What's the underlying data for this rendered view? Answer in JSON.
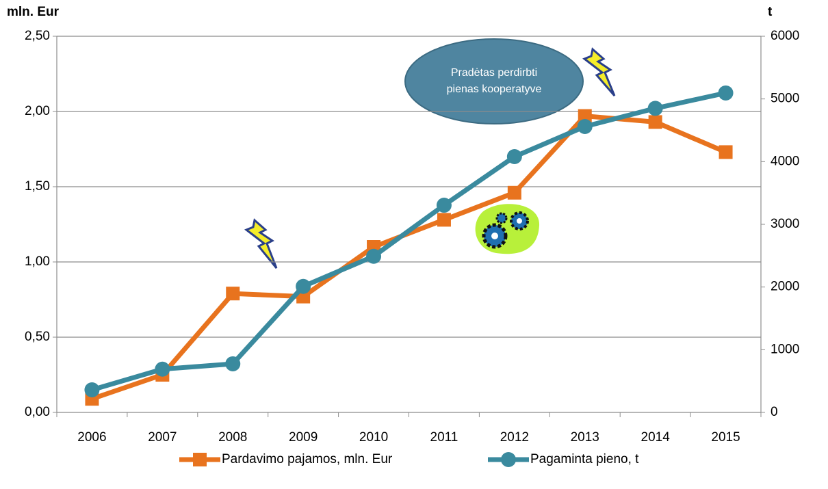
{
  "chart_data": {
    "type": "line",
    "y_label": "mln. Eur",
    "y2_label": "t",
    "categories": [
      "2006",
      "2007",
      "2008",
      "2009",
      "2010",
      "2011",
      "2012",
      "2013",
      "2014",
      "2015"
    ],
    "series": [
      {
        "name": "Pardavimo pajamos, mln. Eur",
        "color": "#e8731e",
        "marker": "square",
        "values": [
          0.09,
          0.25,
          0.79,
          0.77,
          1.1,
          1.28,
          1.46,
          1.97,
          1.93,
          1.73
        ]
      },
      {
        "name": "Pagaminta pieno, t",
        "color": "#3a8a9e",
        "marker": "circle",
        "axis": "y2",
        "values": [
          360,
          690,
          775,
          2010,
          2490,
          3305,
          4080,
          4560,
          4850,
          5095
        ]
      }
    ],
    "ylim": [
      0,
      2.5
    ],
    "yticks": [
      {
        "value": 0,
        "label": "0,00"
      },
      {
        "value": 0.5,
        "label": "0,50"
      },
      {
        "value": 1,
        "label": "1,00"
      },
      {
        "value": 1.5,
        "label": "1,50"
      },
      {
        "value": 2,
        "label": "2,00"
      },
      {
        "value": 2.5,
        "label": "2,50"
      }
    ],
    "y2lim": [
      0,
      6000
    ],
    "y2ticks": [
      0,
      1000,
      2000,
      3000,
      4000,
      5000,
      6000
    ],
    "grid": true,
    "legend": "bottom",
    "annotation": [
      "Pradėtas perdirbti",
      "pienas kooperatyve"
    ]
  }
}
